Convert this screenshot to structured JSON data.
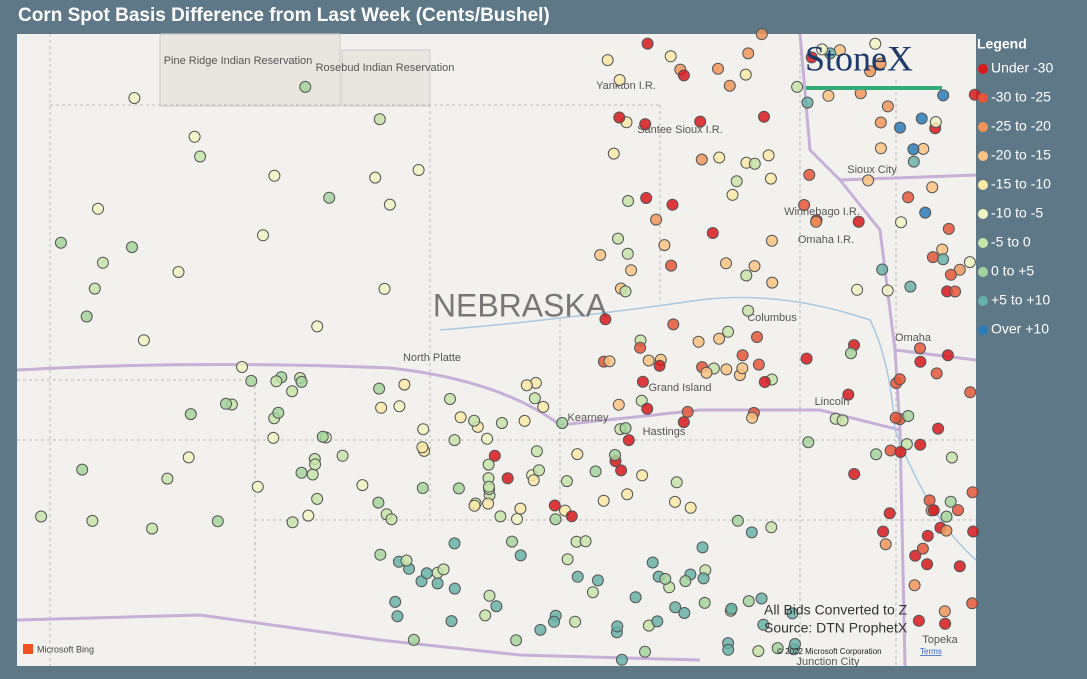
{
  "header": {
    "title": "Corn Spot Basis Difference from Last Week (Cents/Bushel)"
  },
  "legend": {
    "title": "Legend",
    "items": [
      {
        "label": "Under -30",
        "color": "#d7191c"
      },
      {
        "label": "-30 to -25",
        "color": "#e4573a"
      },
      {
        "label": "-25 to -20",
        "color": "#f0955a"
      },
      {
        "label": "-20 to -15",
        "color": "#f9c483"
      },
      {
        "label": "-15 to -10",
        "color": "#fbe9a6"
      },
      {
        "label": "-10 to -5",
        "color": "#eef4c2"
      },
      {
        "label": "-5 to 0",
        "color": "#c6e4a8"
      },
      {
        "label": "0 to +5",
        "color": "#a3d39b"
      },
      {
        "label": "+5 to +10",
        "color": "#67b2a8"
      },
      {
        "label": "Over +10",
        "color": "#2b7bb7"
      }
    ]
  },
  "map": {
    "labels": [
      "Pine Ridge Indian Reservation",
      "Rosebud Indian Reservation",
      "Yankton I.R.",
      "Santee Sioux I.R.",
      "Sioux City",
      "Winnebago I.R.",
      "Omaha I.R.",
      "NEBRASKA",
      "North Platte",
      "Columbus",
      "Grand Island",
      "Kearney",
      "Hastings",
      "Lincoln",
      "Omaha",
      "Topeka",
      "Junction City"
    ],
    "logo": "StoneX",
    "notes": [
      "All Bids Converted to Z",
      "Source: DTN ProphetX"
    ],
    "provider": "Microsoft Bing",
    "copyright": "© 2022 Microsoft Corporation",
    "terms": "Terms"
  }
}
